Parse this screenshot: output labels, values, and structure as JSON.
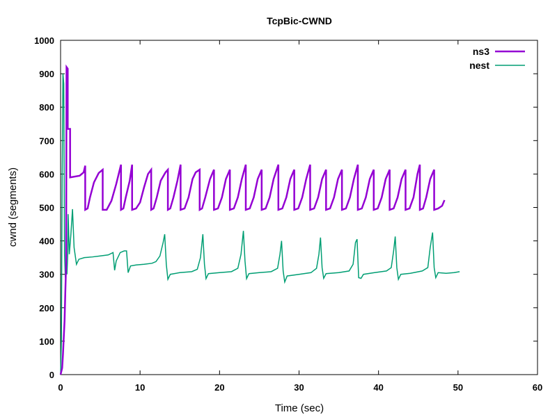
{
  "chart_data": {
    "type": "line",
    "title": "TcpBic-CWND",
    "xlabel": "Time (sec)",
    "ylabel": "cwnd (segments)",
    "xlim": [
      0,
      60
    ],
    "ylim": [
      0,
      1000
    ],
    "xticks": [
      0,
      10,
      20,
      30,
      40,
      50,
      60
    ],
    "yticks": [
      0,
      100,
      200,
      300,
      400,
      500,
      600,
      700,
      800,
      900,
      1000
    ],
    "grid": false,
    "legend": "top-right",
    "series": [
      {
        "name": "ns3",
        "color": "#9400d3",
        "points": [
          [
            0,
            0
          ],
          [
            0.1,
            10
          ],
          [
            0.2,
            20
          ],
          [
            0.3,
            60
          ],
          [
            0.5,
            160
          ],
          [
            0.6,
            250
          ],
          [
            0.7,
            330
          ],
          [
            0.75,
            920
          ],
          [
            0.9,
            915
          ],
          [
            0.9,
            735
          ],
          [
            1.2,
            735
          ],
          [
            1.2,
            590
          ],
          [
            2.4,
            595
          ],
          [
            2.9,
            605
          ],
          [
            3.1,
            625
          ],
          [
            3.1,
            493
          ],
          [
            3.4,
            497
          ],
          [
            3.7,
            530
          ],
          [
            4.2,
            575
          ],
          [
            4.8,
            603
          ],
          [
            5.3,
            613
          ],
          [
            5.3,
            493
          ],
          [
            5.8,
            493
          ],
          [
            6.4,
            520
          ],
          [
            7.0,
            570
          ],
          [
            7.6,
            628
          ],
          [
            7.6,
            493
          ],
          [
            7.9,
            497
          ],
          [
            8.2,
            530
          ],
          [
            8.7,
            580
          ],
          [
            9.0,
            628
          ],
          [
            9.0,
            493
          ],
          [
            9.5,
            497
          ],
          [
            10.0,
            515
          ],
          [
            10.5,
            560
          ],
          [
            11.0,
            600
          ],
          [
            11.4,
            613
          ],
          [
            11.4,
            493
          ],
          [
            11.7,
            497
          ],
          [
            12.1,
            530
          ],
          [
            12.6,
            580
          ],
          [
            13.2,
            605
          ],
          [
            13.5,
            613
          ],
          [
            13.5,
            493
          ],
          [
            13.8,
            497
          ],
          [
            14.2,
            530
          ],
          [
            14.7,
            580
          ],
          [
            15.1,
            628
          ],
          [
            15.1,
            493
          ],
          [
            15.6,
            497
          ],
          [
            16.1,
            530
          ],
          [
            16.6,
            585
          ],
          [
            17.0,
            605
          ],
          [
            17.5,
            613
          ],
          [
            17.5,
            493
          ],
          [
            17.8,
            497
          ],
          [
            18.2,
            530
          ],
          [
            18.8,
            585
          ],
          [
            19.3,
            613
          ],
          [
            19.3,
            493
          ],
          [
            19.8,
            497
          ],
          [
            20.3,
            530
          ],
          [
            20.8,
            585
          ],
          [
            21.3,
            613
          ],
          [
            21.3,
            493
          ],
          [
            21.8,
            497
          ],
          [
            22.3,
            530
          ],
          [
            22.8,
            585
          ],
          [
            23.3,
            628
          ],
          [
            23.3,
            493
          ],
          [
            23.8,
            497
          ],
          [
            24.3,
            530
          ],
          [
            24.8,
            585
          ],
          [
            25.3,
            613
          ],
          [
            25.3,
            493
          ],
          [
            25.8,
            497
          ],
          [
            26.3,
            530
          ],
          [
            26.8,
            585
          ],
          [
            27.4,
            628
          ],
          [
            27.4,
            493
          ],
          [
            27.9,
            497
          ],
          [
            28.4,
            530
          ],
          [
            28.9,
            585
          ],
          [
            29.4,
            613
          ],
          [
            29.4,
            493
          ],
          [
            29.9,
            497
          ],
          [
            30.4,
            530
          ],
          [
            30.9,
            585
          ],
          [
            31.4,
            628
          ],
          [
            31.4,
            493
          ],
          [
            31.9,
            497
          ],
          [
            32.4,
            530
          ],
          [
            32.9,
            585
          ],
          [
            33.4,
            613
          ],
          [
            33.4,
            493
          ],
          [
            33.9,
            497
          ],
          [
            34.4,
            530
          ],
          [
            34.9,
            585
          ],
          [
            35.4,
            613
          ],
          [
            35.4,
            493
          ],
          [
            35.9,
            497
          ],
          [
            36.4,
            530
          ],
          [
            36.9,
            585
          ],
          [
            37.4,
            628
          ],
          [
            37.4,
            493
          ],
          [
            37.9,
            497
          ],
          [
            38.4,
            530
          ],
          [
            38.9,
            585
          ],
          [
            39.4,
            613
          ],
          [
            39.4,
            493
          ],
          [
            39.9,
            497
          ],
          [
            40.4,
            530
          ],
          [
            40.9,
            585
          ],
          [
            41.4,
            613
          ],
          [
            41.4,
            493
          ],
          [
            41.9,
            497
          ],
          [
            42.4,
            530
          ],
          [
            42.9,
            585
          ],
          [
            43.4,
            613
          ],
          [
            43.4,
            493
          ],
          [
            43.9,
            497
          ],
          [
            44.4,
            530
          ],
          [
            44.9,
            600
          ],
          [
            45.2,
            628
          ],
          [
            45.2,
            493
          ],
          [
            45.6,
            497
          ],
          [
            46.0,
            530
          ],
          [
            46.5,
            585
          ],
          [
            47.0,
            613
          ],
          [
            47.0,
            493
          ],
          [
            47.5,
            497
          ],
          [
            48.0,
            505
          ],
          [
            48.3,
            522
          ]
        ]
      },
      {
        "name": "nest",
        "color": "#009e73",
        "points": [
          [
            0,
            0
          ],
          [
            0.1,
            100
          ],
          [
            0.2,
            600
          ],
          [
            0.3,
            900
          ],
          [
            0.4,
            870
          ],
          [
            0.5,
            360
          ],
          [
            0.6,
            290
          ],
          [
            0.7,
            330
          ],
          [
            0.8,
            300
          ],
          [
            0.9,
            360
          ],
          [
            0.95,
            480
          ],
          [
            1.1,
            360
          ],
          [
            1.3,
            420
          ],
          [
            1.5,
            495
          ],
          [
            1.7,
            380
          ],
          [
            2.0,
            330
          ],
          [
            2.3,
            345
          ],
          [
            3.0,
            350
          ],
          [
            4.0,
            352
          ],
          [
            5.0,
            355
          ],
          [
            6.0,
            358
          ],
          [
            6.6,
            365
          ],
          [
            6.8,
            312
          ],
          [
            7.0,
            340
          ],
          [
            7.5,
            365
          ],
          [
            8.0,
            370
          ],
          [
            8.3,
            370
          ],
          [
            8.5,
            305
          ],
          [
            8.8,
            325
          ],
          [
            9.5,
            328
          ],
          [
            10.5,
            330
          ],
          [
            11.5,
            333
          ],
          [
            12.0,
            338
          ],
          [
            12.5,
            355
          ],
          [
            12.9,
            395
          ],
          [
            13.1,
            420
          ],
          [
            13.3,
            330
          ],
          [
            13.5,
            285
          ],
          [
            13.8,
            300
          ],
          [
            15.0,
            305
          ],
          [
            16.5,
            308
          ],
          [
            17.2,
            315
          ],
          [
            17.6,
            350
          ],
          [
            17.9,
            420
          ],
          [
            18.1,
            330
          ],
          [
            18.3,
            287
          ],
          [
            18.6,
            302
          ],
          [
            20.0,
            305
          ],
          [
            21.5,
            308
          ],
          [
            22.3,
            318
          ],
          [
            22.7,
            360
          ],
          [
            23.0,
            430
          ],
          [
            23.2,
            340
          ],
          [
            23.4,
            287
          ],
          [
            23.7,
            302
          ],
          [
            25.0,
            305
          ],
          [
            26.5,
            308
          ],
          [
            27.3,
            318
          ],
          [
            27.6,
            360
          ],
          [
            27.8,
            400
          ],
          [
            28.0,
            310
          ],
          [
            28.2,
            277
          ],
          [
            28.5,
            295
          ],
          [
            30.0,
            300
          ],
          [
            31.5,
            305
          ],
          [
            32.2,
            318
          ],
          [
            32.5,
            360
          ],
          [
            32.7,
            410
          ],
          [
            32.9,
            320
          ],
          [
            33.1,
            288
          ],
          [
            33.4,
            302
          ],
          [
            35.0,
            305
          ],
          [
            36.3,
            310
          ],
          [
            36.8,
            330
          ],
          [
            37.1,
            395
          ],
          [
            37.3,
            405
          ],
          [
            37.5,
            290
          ],
          [
            37.8,
            288
          ],
          [
            38.1,
            300
          ],
          [
            39.5,
            305
          ],
          [
            41.0,
            310
          ],
          [
            41.6,
            320
          ],
          [
            41.9,
            370
          ],
          [
            42.1,
            413
          ],
          [
            42.3,
            320
          ],
          [
            42.5,
            285
          ],
          [
            42.8,
            300
          ],
          [
            44.0,
            303
          ],
          [
            45.5,
            310
          ],
          [
            46.2,
            320
          ],
          [
            46.5,
            380
          ],
          [
            46.8,
            425
          ],
          [
            47.0,
            320
          ],
          [
            47.2,
            290
          ],
          [
            47.5,
            305
          ],
          [
            48.5,
            303
          ],
          [
            49.5,
            305
          ],
          [
            50.2,
            308
          ]
        ]
      }
    ]
  }
}
